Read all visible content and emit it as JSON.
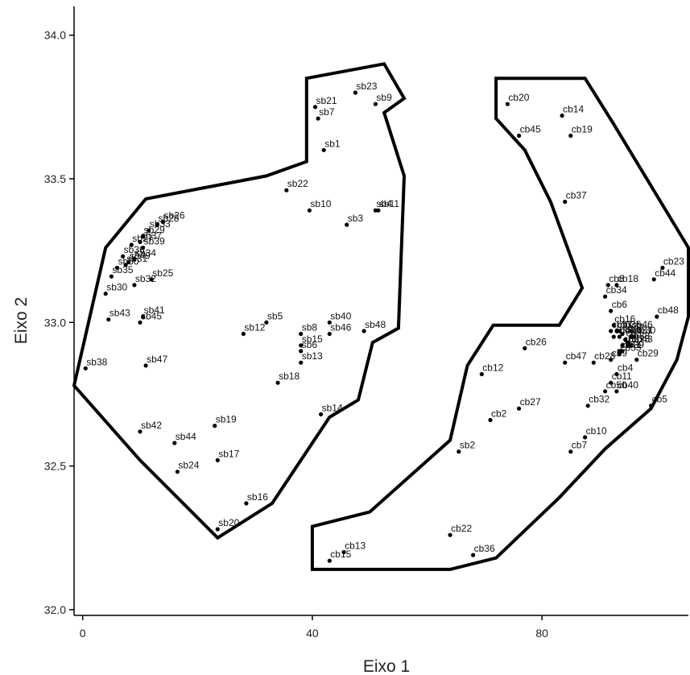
{
  "chart_data": {
    "type": "scatter",
    "title": "",
    "xlabel": "Eixo 1",
    "ylabel": "Eixo 2",
    "xlim": [
      -1.5,
      105.5
    ],
    "ylim": [
      31.98,
      34.1
    ],
    "x_ticks": [
      0,
      40,
      80
    ],
    "x_tick_labels": [
      "0",
      "40",
      "80"
    ],
    "y_ticks": [
      32.0,
      32.5,
      33.0,
      33.5,
      34.0
    ],
    "y_tick_labels": [
      "32.0",
      "32.5",
      "33.0",
      "33.5",
      "34.0"
    ],
    "grid": false,
    "legend": "none",
    "colors": {
      "point": "#000000",
      "hull": "#000000",
      "axis": "#000000"
    },
    "hulls": [
      {
        "group": "sb",
        "points": [
          [
            -1.5,
            32.78
          ],
          [
            4,
            33.26
          ],
          [
            11,
            33.43
          ],
          [
            32,
            33.51
          ],
          [
            39,
            33.56
          ],
          [
            39,
            33.85
          ],
          [
            52.5,
            33.9
          ],
          [
            56,
            33.78
          ],
          [
            52.5,
            33.73
          ],
          [
            56,
            33.51
          ],
          [
            55,
            32.98
          ],
          [
            50.5,
            32.93
          ],
          [
            48,
            32.73
          ],
          [
            43,
            32.67
          ],
          [
            33,
            32.37
          ],
          [
            23.5,
            32.25
          ],
          [
            10,
            32.52
          ]
        ]
      },
      {
        "group": "cb",
        "points": [
          [
            72,
            33.85
          ],
          [
            87.5,
            33.85
          ],
          [
            92.5,
            33.69
          ],
          [
            105.5,
            33.26
          ],
          [
            105.5,
            33.02
          ],
          [
            103.5,
            32.87
          ],
          [
            99,
            32.7
          ],
          [
            91,
            32.56
          ],
          [
            83,
            32.39
          ],
          [
            72,
            32.18
          ],
          [
            64,
            32.14
          ],
          [
            40,
            32.14
          ],
          [
            40,
            32.29
          ],
          [
            50,
            32.34
          ],
          [
            64,
            32.59
          ],
          [
            67,
            32.85
          ],
          [
            71.5,
            32.99
          ],
          [
            83,
            32.99
          ],
          [
            87,
            33.12
          ],
          [
            81.5,
            33.42
          ],
          [
            77,
            33.6
          ],
          [
            72,
            33.71
          ]
        ]
      }
    ],
    "series": [
      {
        "group": "sb",
        "points": [
          {
            "label": "sb1",
            "x": 42,
            "y": 33.6
          },
          {
            "label": "sb2",
            "x": 65.5,
            "y": 32.55
          },
          {
            "label": "sb3",
            "x": 46,
            "y": 33.34
          },
          {
            "label": "sb4",
            "x": 51,
            "y": 33.39
          },
          {
            "label": "sb5",
            "x": 32,
            "y": 33.0
          },
          {
            "label": "sb6",
            "x": 38,
            "y": 32.9
          },
          {
            "label": "sb7",
            "x": 41,
            "y": 33.71
          },
          {
            "label": "sb8",
            "x": 38,
            "y": 32.96
          },
          {
            "label": "sb9",
            "x": 51,
            "y": 33.76
          },
          {
            "label": "sb10",
            "x": 39.5,
            "y": 33.39
          },
          {
            "label": "sb11",
            "x": 51.5,
            "y": 33.39
          },
          {
            "label": "sb12",
            "x": 28,
            "y": 32.96
          },
          {
            "label": "sb13",
            "x": 38,
            "y": 32.86
          },
          {
            "label": "sb14",
            "x": 41.5,
            "y": 32.68
          },
          {
            "label": "sb15",
            "x": 38,
            "y": 32.92
          },
          {
            "label": "sb16",
            "x": 28.5,
            "y": 32.37
          },
          {
            "label": "sb17",
            "x": 23.5,
            "y": 32.52
          },
          {
            "label": "sb18",
            "x": 34,
            "y": 32.79
          },
          {
            "label": "sb19",
            "x": 23,
            "y": 32.64
          },
          {
            "label": "sb20",
            "x": 23.5,
            "y": 32.28
          },
          {
            "label": "sb21",
            "x": 40.5,
            "y": 33.75
          },
          {
            "label": "sb22",
            "x": 35.5,
            "y": 33.46
          },
          {
            "label": "sb23",
            "x": 47.5,
            "y": 33.8
          },
          {
            "label": "sb24",
            "x": 16.5,
            "y": 32.48
          },
          {
            "label": "sb25",
            "x": 12,
            "y": 33.15
          },
          {
            "label": "sb26",
            "x": 14,
            "y": 33.35
          },
          {
            "label": "sb27",
            "x": 8.5,
            "y": 33.27
          },
          {
            "label": "sb28",
            "x": 13,
            "y": 33.34
          },
          {
            "label": "sb29",
            "x": 10.5,
            "y": 33.3
          },
          {
            "label": "sb30",
            "x": 4,
            "y": 33.1
          },
          {
            "label": "sb31",
            "x": 7.5,
            "y": 33.2
          },
          {
            "label": "sb32",
            "x": 9,
            "y": 33.13
          },
          {
            "label": "sb33",
            "x": 11.5,
            "y": 33.32
          },
          {
            "label": "sb34",
            "x": 9,
            "y": 33.22
          },
          {
            "label": "sb35",
            "x": 5,
            "y": 33.16
          },
          {
            "label": "sb36",
            "x": 7,
            "y": 33.23
          },
          {
            "label": "sb37",
            "x": 10,
            "y": 33.28
          },
          {
            "label": "sb38",
            "x": 0.5,
            "y": 32.84
          },
          {
            "label": "sb39",
            "x": 10.5,
            "y": 33.26
          },
          {
            "label": "sb40",
            "x": 43,
            "y": 33.0
          },
          {
            "label": "sb41",
            "x": 10.5,
            "y": 33.02
          },
          {
            "label": "sb42",
            "x": 10,
            "y": 32.62
          },
          {
            "label": "sb43",
            "x": 4.5,
            "y": 33.01
          },
          {
            "label": "sb44",
            "x": 16,
            "y": 32.58
          },
          {
            "label": "sb45",
            "x": 10,
            "y": 33.0
          },
          {
            "label": "sb46",
            "x": 43,
            "y": 32.96
          },
          {
            "label": "sb47",
            "x": 11,
            "y": 32.85
          },
          {
            "label": "sb48",
            "x": 49,
            "y": 32.97
          },
          {
            "label": "sb49",
            "x": 8,
            "y": 33.21
          },
          {
            "label": "sb50",
            "x": 6,
            "y": 33.19
          }
        ]
      },
      {
        "group": "cb",
        "points": [
          {
            "label": "cb1",
            "x": 93,
            "y": 32.97
          },
          {
            "label": "cb2",
            "x": 71,
            "y": 32.66
          },
          {
            "label": "cb3",
            "x": 94.5,
            "y": 32.94
          },
          {
            "label": "cb4",
            "x": 93,
            "y": 32.82
          },
          {
            "label": "cb5",
            "x": 99,
            "y": 32.71
          },
          {
            "label": "cb6",
            "x": 92,
            "y": 33.04
          },
          {
            "label": "cb7",
            "x": 85,
            "y": 32.55
          },
          {
            "label": "cb8",
            "x": 91.5,
            "y": 33.13
          },
          {
            "label": "cb9",
            "x": 92,
            "y": 32.87
          },
          {
            "label": "cb10",
            "x": 87.5,
            "y": 32.6
          },
          {
            "label": "cb11",
            "x": 92,
            "y": 32.79
          },
          {
            "label": "cb12",
            "x": 69.5,
            "y": 32.82
          },
          {
            "label": "cb13",
            "x": 45.5,
            "y": 32.2
          },
          {
            "label": "cb14",
            "x": 83.5,
            "y": 33.72
          },
          {
            "label": "cb15",
            "x": 43,
            "y": 32.17
          },
          {
            "label": "cb16",
            "x": 92.5,
            "y": 32.99
          },
          {
            "label": "cb17",
            "x": 92,
            "y": 32.97
          },
          {
            "label": "cb18",
            "x": 93,
            "y": 33.13
          },
          {
            "label": "cb19",
            "x": 85,
            "y": 33.65
          },
          {
            "label": "cb20",
            "x": 74,
            "y": 33.76
          },
          {
            "label": "cb21",
            "x": 94,
            "y": 32.92
          },
          {
            "label": "cb22",
            "x": 64,
            "y": 32.26
          },
          {
            "label": "cb23",
            "x": 101,
            "y": 33.19
          },
          {
            "label": "cb24",
            "x": 93.5,
            "y": 32.95
          },
          {
            "label": "cb25",
            "x": 95,
            "y": 32.92
          },
          {
            "label": "cb26",
            "x": 77,
            "y": 32.91
          },
          {
            "label": "cb27",
            "x": 76,
            "y": 32.7
          },
          {
            "label": "cb28",
            "x": 89,
            "y": 32.86
          },
          {
            "label": "cb29",
            "x": 96.5,
            "y": 32.87
          },
          {
            "label": "cb30",
            "x": 96,
            "y": 32.95
          },
          {
            "label": "cb31",
            "x": 95.5,
            "y": 32.95
          },
          {
            "label": "cb32",
            "x": 88,
            "y": 32.71
          },
          {
            "label": "cb33",
            "x": 93.5,
            "y": 32.89
          },
          {
            "label": "cb34",
            "x": 91,
            "y": 33.09
          },
          {
            "label": "cb35",
            "x": 93.5,
            "y": 32.97
          },
          {
            "label": "cb36",
            "x": 68,
            "y": 32.19
          },
          {
            "label": "cb37",
            "x": 84,
            "y": 33.42
          },
          {
            "label": "cb38",
            "x": 95,
            "y": 32.93
          },
          {
            "label": "cb39",
            "x": 94,
            "y": 32.9
          },
          {
            "label": "cb40",
            "x": 93,
            "y": 32.76
          },
          {
            "label": "cb41",
            "x": 93.5,
            "y": 32.9
          },
          {
            "label": "cb42",
            "x": 94,
            "y": 32.96
          },
          {
            "label": "cb43",
            "x": 95.5,
            "y": 32.92
          },
          {
            "label": "cb44",
            "x": 99.5,
            "y": 33.15
          },
          {
            "label": "cb45",
            "x": 76,
            "y": 33.65
          },
          {
            "label": "cb46",
            "x": 95.5,
            "y": 32.97
          },
          {
            "label": "cb47",
            "x": 84,
            "y": 32.86
          },
          {
            "label": "cb48",
            "x": 100,
            "y": 33.02
          },
          {
            "label": "cb49",
            "x": 92.5,
            "y": 32.95
          },
          {
            "label": "cb50",
            "x": 91,
            "y": 32.76
          }
        ]
      }
    ]
  }
}
